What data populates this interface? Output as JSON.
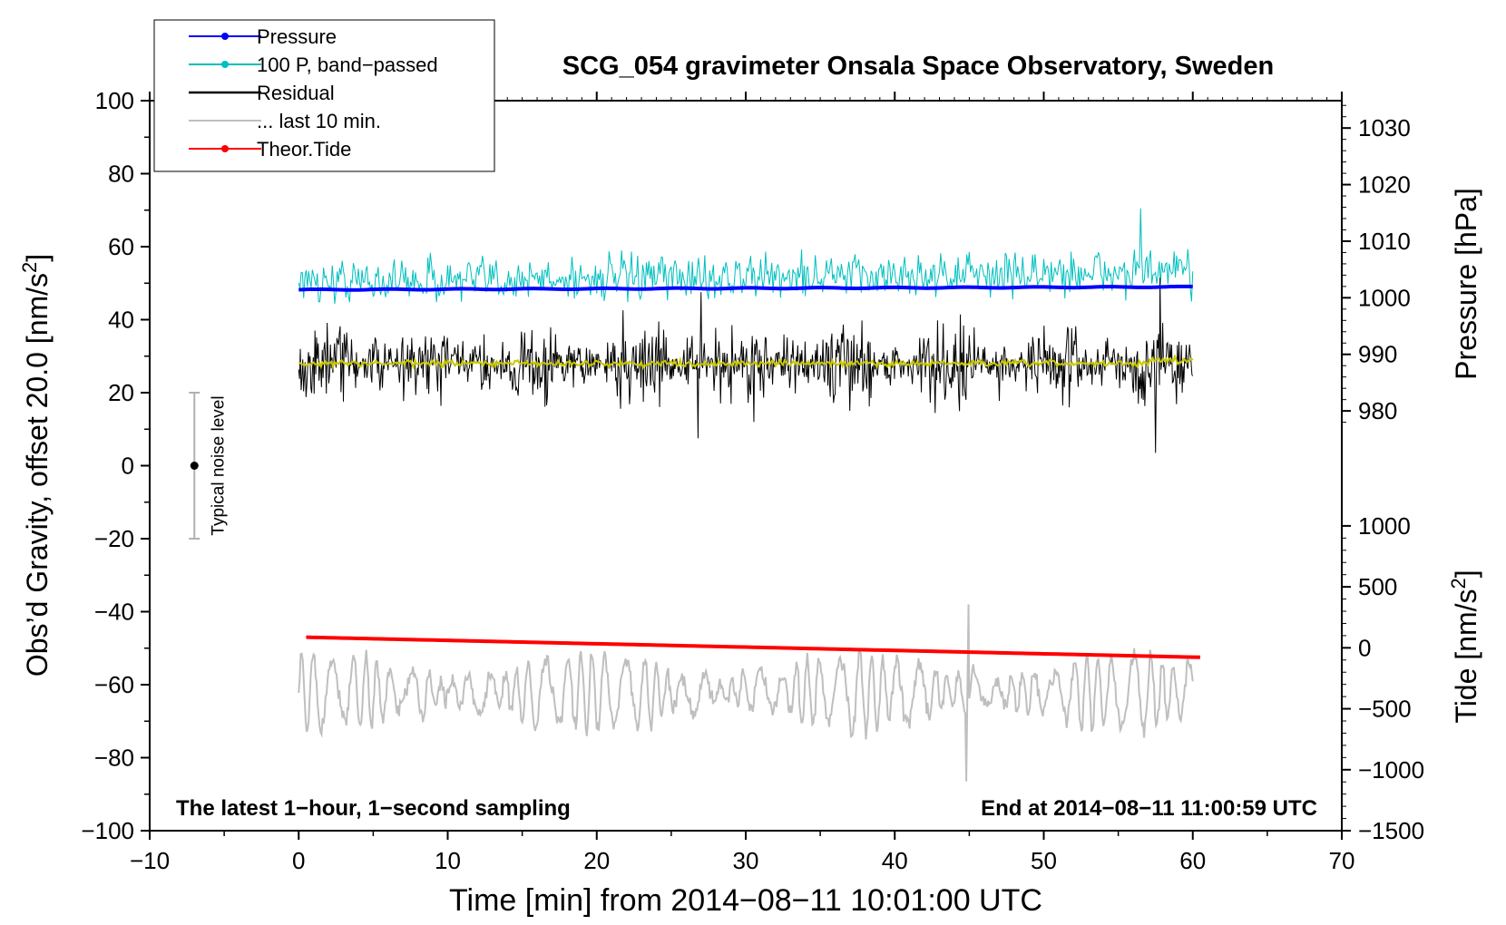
{
  "chart_data": {
    "type": "line",
    "title": "SCG_054 gravimeter Onsala Space Observatory, Sweden",
    "xlabel": "Time [min] from 2014−08−11 10:01:00 UTC",
    "ylabel_left": "Obs’d Gravity, offset 20.0 [nm/s",
    "ylabel_left_sup": "2",
    "ylabel_left_end": "]",
    "ylabel_right_top": "Pressure [hPa]",
    "ylabel_right_bottom": "Tide [nm/s",
    "ylabel_right_bottom_sup": "2",
    "ylabel_right_bottom_end": "]",
    "xlim": [
      -10,
      70
    ],
    "ylim": [
      -100,
      100
    ],
    "x_ticks": [
      -10,
      0,
      10,
      20,
      30,
      40,
      50,
      60,
      70
    ],
    "x_tick_labels": [
      "−10",
      "0",
      "10",
      "20",
      "30",
      "40",
      "50",
      "60",
      "70"
    ],
    "y_ticks": [
      -100,
      -80,
      -60,
      -40,
      -20,
      0,
      20,
      40,
      60,
      80,
      100
    ],
    "y_tick_labels": [
      "−100",
      "−80",
      "−60",
      "−40",
      "−20",
      "0",
      "20",
      "40",
      "60",
      "80",
      "100"
    ],
    "pressure_axis": {
      "ticks": [
        980,
        990,
        1000,
        1010,
        1020,
        1030
      ],
      "tick_labels": [
        "980",
        "990",
        "1000",
        "1010",
        "1020",
        "1030"
      ],
      "map": {
        "value_a": 980,
        "gravity_a": 15,
        "value_b": 1030,
        "gravity_b": 92.5
      }
    },
    "tide_axis": {
      "ticks": [
        -1500,
        -1000,
        -500,
        0,
        500,
        1000
      ],
      "tick_labels": [
        "−1500",
        "−1000",
        "−500",
        "0",
        "500",
        "1000"
      ],
      "map": {
        "value_a": -1500,
        "gravity_a": -100,
        "value_b": 1000,
        "gravity_b": -16.5
      }
    },
    "legend": [
      {
        "label": "Pressure",
        "color": "#0000ff",
        "marker": true
      },
      {
        "label": "100 P, band−passed",
        "color": "#00bfbf",
        "marker": true
      },
      {
        "label": "Residual",
        "color": "#000000",
        "marker": false
      },
      {
        "label": "... last 10 min.",
        "color": "#bfbfbf",
        "marker": false
      },
      {
        "label": "Theor.Tide",
        "color": "#ff0000",
        "marker": true
      }
    ],
    "series": [
      {
        "name": "Pressure",
        "color": "#0000ff",
        "x_range": [
          0,
          60
        ],
        "y_start": 48.2,
        "y_end": 49.0
      },
      {
        "name": "100 P, band−passed",
        "color": "#00bfbf",
        "x_range": [
          0,
          60
        ],
        "y_center": 50.5,
        "amplitude": 5.5,
        "spike": {
          "x": 56.5,
          "y": 70.5
        }
      },
      {
        "name": "Residual",
        "color": "#000000",
        "x_range": [
          0,
          60
        ],
        "y_center": 27.8,
        "amplitude": 10,
        "spikes": [
          {
            "x": 26.8,
            "y": 7.5
          },
          {
            "x": 27.0,
            "y": 47.5
          },
          {
            "x": 57.5,
            "y": 3.5
          },
          {
            "x": 57.8,
            "y": 51.5
          }
        ]
      },
      {
        "name": "Residual (smoothed)",
        "color": "#c8c800",
        "x_range": [
          0,
          60
        ],
        "y_center": 28.0,
        "amplitude": 1.2
      },
      {
        "name": "... last 10 min.",
        "color": "#bfbfbf",
        "x_range": [
          0,
          60
        ],
        "y_center": -62,
        "amplitude": 10,
        "min": -86.5,
        "max": -38
      },
      {
        "name": "Theor.Tide",
        "color": "#ff0000",
        "x_range": [
          0.5,
          60.5
        ],
        "y_start": -47.0,
        "y_end": -52.5
      }
    ],
    "noise_bar": {
      "x": -7,
      "y_center": 0,
      "y_low": -20,
      "y_high": 20,
      "label": "Typical noise level"
    },
    "annotations": {
      "bottom_left": "The latest 1−hour, 1−second sampling",
      "bottom_right": "End at 2014−08−11 11:00:59 UTC"
    }
  }
}
